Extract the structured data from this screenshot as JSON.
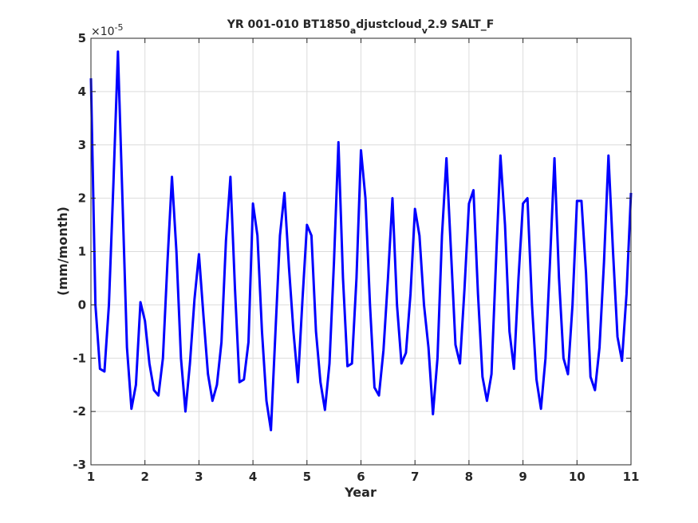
{
  "chart_data": {
    "type": "line",
    "title_parts": [
      "YR 001-010 BT1850",
      "a",
      "djustcloud",
      "v",
      "2.9 SALT_F"
    ],
    "xlabel": "Year",
    "ylabel": "(mm/month)",
    "y_exponent_base": "×10",
    "y_exponent": "-5",
    "xlim": [
      1,
      11
    ],
    "ylim": [
      -3,
      5
    ],
    "x_ticks": [
      "1",
      "2",
      "3",
      "4",
      "5",
      "6",
      "7",
      "8",
      "9",
      "10",
      "11"
    ],
    "y_ticks": [
      "-3",
      "-2",
      "-1",
      "0",
      "1",
      "2",
      "3",
      "4",
      "5"
    ],
    "grid": true,
    "line_color": "#0000ff",
    "x": [
      1.0,
      1.083,
      1.167,
      1.25,
      1.333,
      1.417,
      1.5,
      1.583,
      1.667,
      1.75,
      1.833,
      1.917,
      2.0,
      2.083,
      2.167,
      2.25,
      2.333,
      2.417,
      2.5,
      2.583,
      2.667,
      2.75,
      2.833,
      2.917,
      3.0,
      3.083,
      3.167,
      3.25,
      3.333,
      3.417,
      3.5,
      3.583,
      3.667,
      3.75,
      3.833,
      3.917,
      4.0,
      4.083,
      4.167,
      4.25,
      4.333,
      4.417,
      4.5,
      4.583,
      4.667,
      4.75,
      4.833,
      4.917,
      5.0,
      5.083,
      5.167,
      5.25,
      5.333,
      5.417,
      5.5,
      5.583,
      5.667,
      5.75,
      5.833,
      5.917,
      6.0,
      6.083,
      6.167,
      6.25,
      6.333,
      6.417,
      6.5,
      6.583,
      6.667,
      6.75,
      6.833,
      6.917,
      7.0,
      7.083,
      7.167,
      7.25,
      7.333,
      7.417,
      7.5,
      7.583,
      7.667,
      7.75,
      7.833,
      7.917,
      8.0,
      8.083,
      8.167,
      8.25,
      8.333,
      8.417,
      8.5,
      8.583,
      8.667,
      8.75,
      8.833,
      8.917,
      9.0,
      9.083,
      9.167,
      9.25,
      9.333,
      9.417,
      9.5,
      9.583,
      9.667,
      9.75,
      9.833,
      9.917,
      10.0,
      10.083,
      10.167,
      10.25,
      10.333,
      10.417,
      10.5,
      10.583,
      10.667,
      10.75,
      10.833,
      10.917,
      11.0
    ],
    "y": [
      4.25,
      0.0,
      -1.2,
      -1.25,
      0.0,
      2.3,
      4.75,
      2.0,
      -0.8,
      -1.95,
      -1.5,
      0.05,
      -0.3,
      -1.1,
      -1.6,
      -1.7,
      -1.0,
      0.8,
      2.4,
      1.0,
      -1.0,
      -2.0,
      -1.1,
      0.1,
      0.95,
      -0.2,
      -1.3,
      -1.8,
      -1.5,
      -0.7,
      1.2,
      2.4,
      0.3,
      -1.45,
      -1.4,
      -0.7,
      1.9,
      1.3,
      -0.5,
      -1.8,
      -2.35,
      -0.5,
      1.3,
      2.1,
      0.7,
      -0.5,
      -1.45,
      0.1,
      1.5,
      1.3,
      -0.5,
      -1.45,
      -1.97,
      -1.1,
      0.8,
      3.05,
      0.5,
      -1.15,
      -1.1,
      0.5,
      2.9,
      2.0,
      0.0,
      -1.55,
      -1.7,
      -0.85,
      0.5,
      2.0,
      0.0,
      -1.1,
      -0.9,
      0.2,
      1.8,
      1.3,
      0.0,
      -0.8,
      -2.05,
      -1.0,
      1.3,
      2.75,
      1.0,
      -0.75,
      -1.1,
      0.3,
      1.9,
      2.15,
      0.2,
      -1.35,
      -1.8,
      -1.3,
      0.8,
      2.8,
      1.5,
      -0.5,
      -1.2,
      0.5,
      1.9,
      2.0,
      0.0,
      -1.4,
      -1.95,
      -1.0,
      0.8,
      2.75,
      0.5,
      -1.0,
      -1.3,
      0.0,
      1.95,
      1.95,
      0.6,
      -1.35,
      -1.6,
      -0.8,
      0.8,
      2.8,
      1.0,
      -0.6,
      -1.05,
      0.2,
      2.1
    ]
  }
}
